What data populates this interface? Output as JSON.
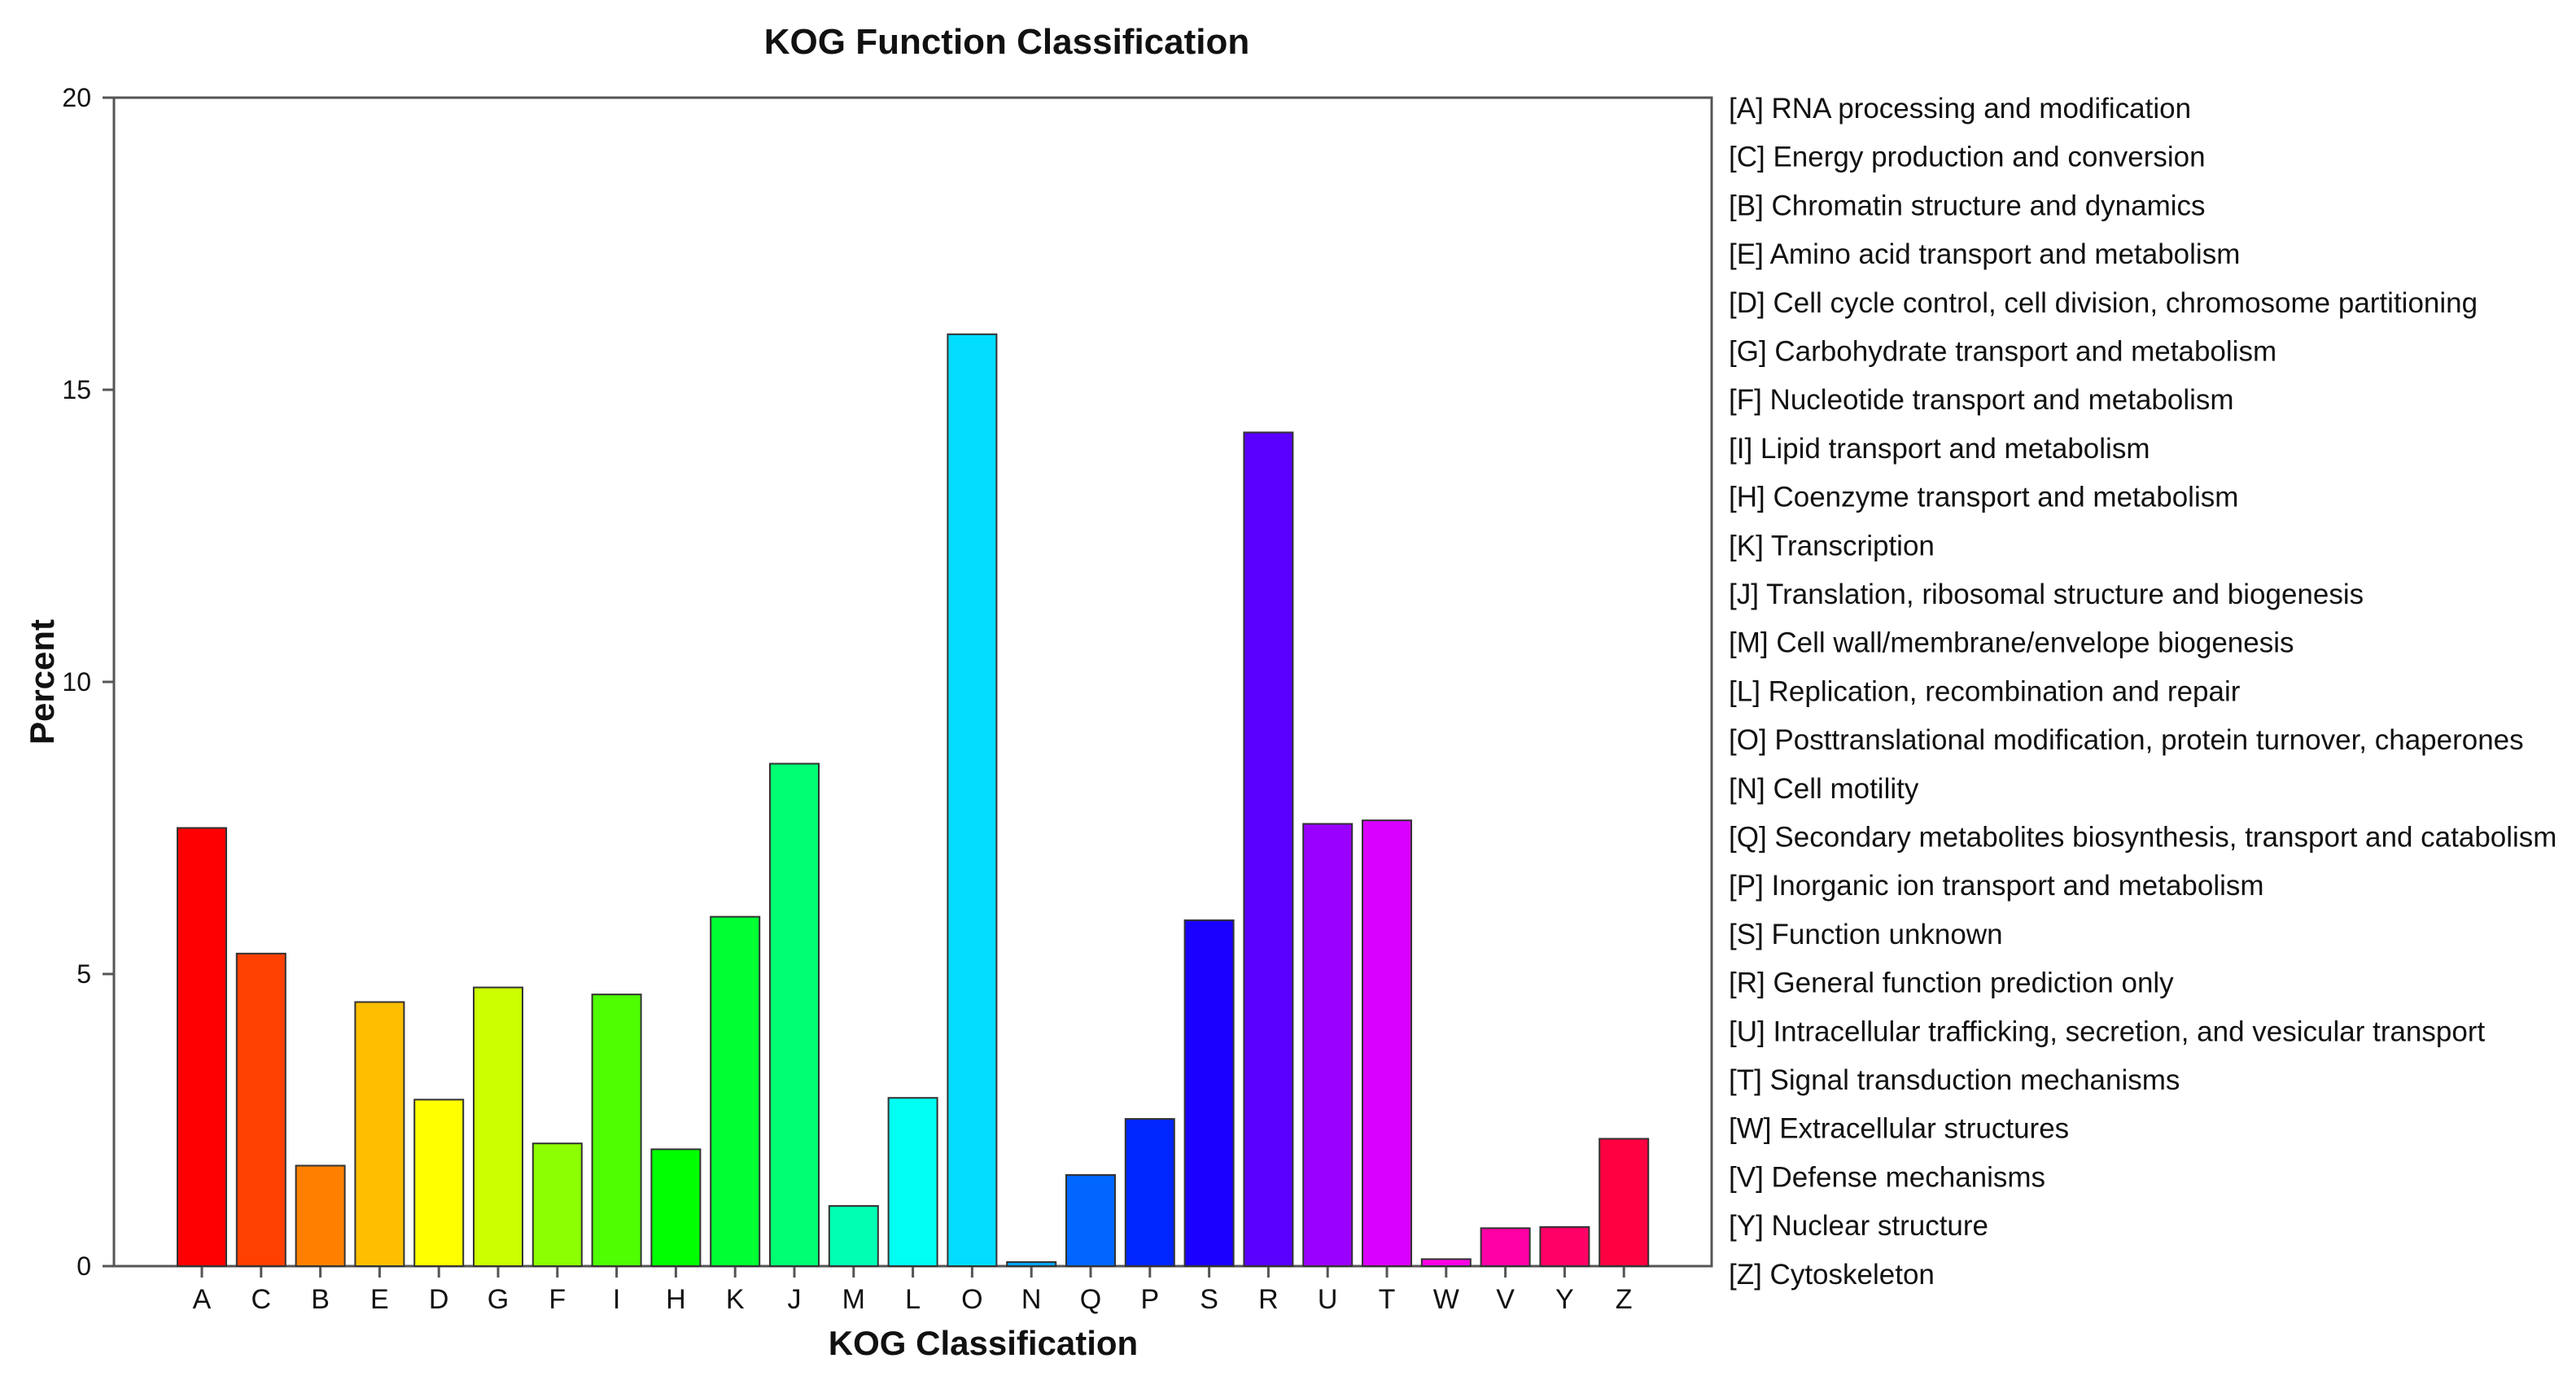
{
  "chart_data": {
    "type": "bar",
    "title": "KOG Function Classification",
    "xlabel": "KOG Classification",
    "ylabel": "Percent",
    "ylim": [
      0,
      20
    ],
    "yticks": [
      0,
      5,
      10,
      15,
      20
    ],
    "grid": false,
    "legend_position": "right",
    "categories": [
      "A",
      "C",
      "B",
      "E",
      "D",
      "G",
      "F",
      "I",
      "H",
      "K",
      "J",
      "M",
      "L",
      "O",
      "N",
      "Q",
      "P",
      "S",
      "R",
      "U",
      "T",
      "W",
      "V",
      "Y",
      "Z"
    ],
    "values": [
      7.5,
      5.35,
      1.72,
      4.52,
      2.85,
      4.77,
      2.1,
      4.65,
      2.0,
      5.98,
      8.6,
      1.03,
      2.88,
      15.95,
      0.07,
      1.56,
      2.52,
      5.92,
      14.27,
      7.57,
      7.63,
      0.12,
      0.65,
      0.67,
      2.18
    ],
    "colors": [
      "#ff0000",
      "#ff4000",
      "#ff8000",
      "#ffbf00",
      "#ffff00",
      "#ccff00",
      "#8cff00",
      "#4dff00",
      "#00ff00",
      "#00ff33",
      "#00ff73",
      "#00ffb3",
      "#00fff2",
      "#00ddff",
      "#00a6ff",
      "#0066ff",
      "#0026ff",
      "#1900ff",
      "#5900ff",
      "#9900ff",
      "#d900ff",
      "#ff00e6",
      "#ff00a6",
      "#ff0066",
      "#ff0040"
    ],
    "legend": [
      "[A] RNA processing and modification",
      "[C] Energy production and conversion",
      "[B] Chromatin structure and dynamics",
      "[E] Amino acid transport and metabolism",
      "[D] Cell cycle control, cell division, chromosome partitioning",
      "[G] Carbohydrate transport and metabolism",
      "[F] Nucleotide transport and metabolism",
      "[I] Lipid transport and metabolism",
      "[H] Coenzyme transport and metabolism",
      "[K] Transcription",
      "[J] Translation, ribosomal structure and biogenesis",
      "[M] Cell wall/membrane/envelope biogenesis",
      "[L] Replication, recombination and repair",
      "[O] Posttranslational modification, protein turnover, chaperones",
      "[N] Cell motility",
      "[Q] Secondary metabolites biosynthesis, transport and catabolism",
      "[P] Inorganic ion transport and metabolism",
      "[S] Function unknown",
      "[R] General function prediction only",
      "[U] Intracellular trafficking, secretion, and vesicular transport",
      "[T] Signal transduction mechanisms",
      "[W] Extracellular structures",
      "[V] Defense mechanisms",
      "[Y] Nuclear structure",
      "[Z] Cytoskeleton"
    ]
  }
}
